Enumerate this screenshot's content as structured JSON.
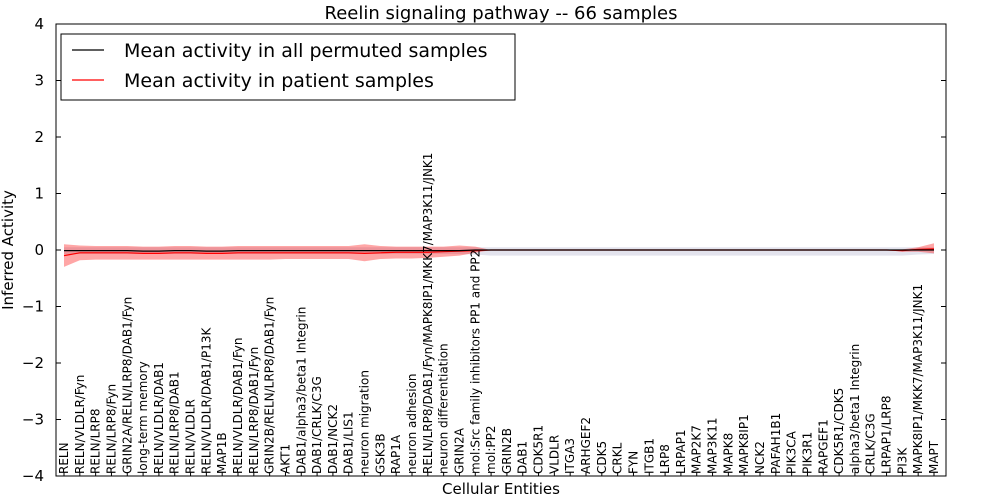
{
  "chart_data": {
    "type": "line",
    "title": "Reelin signaling pathway -- 66 samples",
    "xlabel": "Cellular Entities",
    "ylabel": "Inferred Activity",
    "ylim": [
      -4,
      4
    ],
    "yticks": [
      "−4",
      "−3",
      "−2",
      "−1",
      "0",
      "1",
      "2",
      "3",
      "4"
    ],
    "grid": false,
    "legend": {
      "position": "top-left",
      "entries": [
        {
          "label": "Mean activity in all permuted samples",
          "color": "#000000"
        },
        {
          "label": "Mean activity in patient samples",
          "color": "#ff0000"
        }
      ]
    },
    "colors": {
      "patient_band": "#ff0000",
      "permuted_band": "#c8c8dc",
      "permuted_line": "#000000",
      "patient_line": "#ff0000"
    },
    "categories": [
      "RELN",
      "RELN/VLDLR/Fyn",
      "RELN/LRP8",
      "RELN/LRP8/Fyn",
      "GRIN2A/RELN/LRP8/DAB1/Fyn",
      "long-term memory",
      "RELN/VLDLR/DAB1",
      "RELN/LRP8/DAB1",
      "RELN/VLDLR",
      "RELN/VLDLR/DAB1/P13K",
      "MAP1B",
      "RELN/VLDLR/DAB1/Fyn",
      "RELN/LRP8/DAB1/Fyn",
      "GRIN2B/RELN/LRP8/DAB1/Fyn",
      "AKT1",
      "DAB1/alpha3/beta1 Integrin",
      "DAB1/CRLK/C3G",
      "DAB1/NCK2",
      "DAB1/LIS1",
      "neuron migration",
      "GSK3B",
      "RAP1A",
      "neuron adhesion",
      "RELN/LRP8/DAB1/Fyn/MAPK8IP1/MKK7/MAP3K11/JNK1",
      "neuron differentiation",
      "GRIN2A",
      "mol:Src family inhibitors PP1 and PP2",
      "mol:PP2",
      "GRIN2B",
      "DAB1",
      "CDK5R1",
      "VLDLR",
      "ITGA3",
      "ARHGEF2",
      "CDK5",
      "CRKL",
      "FYN",
      "ITGB1",
      "LRP8",
      "LRPAP1",
      "MAP2K7",
      "MAP3K11",
      "MAPK8",
      "MAPK8IP1",
      "NCK2",
      "PAFAH1B1",
      "PIK3CA",
      "PIK3R1",
      "RAPGEF1",
      "CDK5R1/CDK5",
      "alpha3/beta1 Integrin",
      "CRLK/C3G",
      "LRPAP1/LRP8",
      "PI3K",
      "MAPK8IP1/MKK7/MAP3K11/JNK1",
      "MAPT"
    ],
    "series": [
      {
        "name": "Mean activity in all permuted samples",
        "values": [
          -0.01,
          -0.01,
          -0.01,
          -0.01,
          -0.01,
          -0.02,
          -0.02,
          -0.01,
          -0.01,
          -0.02,
          -0.02,
          -0.01,
          -0.01,
          -0.01,
          -0.01,
          -0.01,
          -0.01,
          -0.01,
          -0.01,
          -0.01,
          -0.01,
          -0.01,
          -0.01,
          -0.01,
          -0.01,
          -0.01,
          0,
          0,
          0,
          0,
          0,
          0,
          0,
          0,
          0,
          0,
          0,
          0,
          0,
          0,
          0,
          0,
          0,
          0,
          0,
          0,
          0,
          0,
          0,
          0,
          0,
          0,
          0,
          0,
          0,
          0
        ]
      },
      {
        "name": "Mean activity in patient samples",
        "values": [
          -0.1,
          -0.05,
          -0.05,
          -0.05,
          -0.05,
          -0.06,
          -0.06,
          -0.05,
          -0.05,
          -0.06,
          -0.06,
          -0.05,
          -0.05,
          -0.05,
          -0.05,
          -0.05,
          -0.05,
          -0.05,
          -0.05,
          -0.06,
          -0.05,
          -0.04,
          -0.04,
          -0.04,
          -0.03,
          -0.02,
          -0.01,
          0,
          0,
          0,
          0,
          0,
          0,
          0,
          0,
          0,
          0,
          0,
          0,
          0,
          0,
          0,
          0,
          0,
          0,
          0,
          0,
          0,
          0,
          0,
          0,
          0,
          0,
          -0.01,
          0.01,
          0.02
        ]
      }
    ],
    "bands": {
      "patient": {
        "upper": [
          0.1,
          0.08,
          0.07,
          0.07,
          0.07,
          0.06,
          0.06,
          0.07,
          0.07,
          0.06,
          0.06,
          0.07,
          0.07,
          0.07,
          0.07,
          0.07,
          0.07,
          0.07,
          0.07,
          0.1,
          0.07,
          0.06,
          0.06,
          0.06,
          0.06,
          0.08,
          0.06,
          0,
          0,
          0,
          0,
          0,
          0,
          0,
          0,
          0,
          0,
          0,
          0,
          0,
          0,
          0,
          0,
          0,
          0,
          0,
          0,
          0,
          0,
          0,
          0,
          0,
          0,
          0.01,
          0.05,
          0.12
        ],
        "lower": [
          -0.3,
          -0.18,
          -0.17,
          -0.17,
          -0.17,
          -0.17,
          -0.17,
          -0.17,
          -0.17,
          -0.17,
          -0.17,
          -0.17,
          -0.17,
          -0.17,
          -0.16,
          -0.16,
          -0.16,
          -0.16,
          -0.16,
          -0.2,
          -0.16,
          -0.15,
          -0.15,
          -0.14,
          -0.12,
          -0.1,
          -0.05,
          0,
          0,
          0,
          0,
          0,
          0,
          0,
          0,
          0,
          0,
          0,
          0,
          0,
          0,
          0,
          0,
          0,
          0,
          0,
          0,
          0,
          0,
          0,
          0,
          0,
          0,
          -0.03,
          -0.03,
          -0.06
        ]
      },
      "permuted": {
        "upper": [
          0.05,
          0.05,
          0.05,
          0.05,
          0.05,
          0.05,
          0.05,
          0.05,
          0.05,
          0.05,
          0.05,
          0.05,
          0.05,
          0.05,
          0.05,
          0.05,
          0.05,
          0.05,
          0.05,
          0.05,
          0.05,
          0.05,
          0.05,
          0.05,
          0.05,
          0.05,
          0.05,
          0.05,
          0.05,
          0.05,
          0.05,
          0.05,
          0.05,
          0.05,
          0.05,
          0.05,
          0.05,
          0.05,
          0.05,
          0.05,
          0.05,
          0.05,
          0.05,
          0.05,
          0.05,
          0.05,
          0.05,
          0.05,
          0.05,
          0.05,
          0.05,
          0.05,
          0.05,
          0.05,
          0.05,
          0.05
        ],
        "lower": [
          -0.07,
          -0.07,
          -0.07,
          -0.07,
          -0.07,
          -0.07,
          -0.07,
          -0.07,
          -0.07,
          -0.07,
          -0.07,
          -0.07,
          -0.07,
          -0.07,
          -0.07,
          -0.07,
          -0.07,
          -0.07,
          -0.07,
          -0.07,
          -0.07,
          -0.07,
          -0.07,
          -0.07,
          -0.07,
          -0.07,
          -0.08,
          -0.1,
          -0.1,
          -0.1,
          -0.1,
          -0.1,
          -0.1,
          -0.1,
          -0.1,
          -0.1,
          -0.1,
          -0.1,
          -0.1,
          -0.1,
          -0.1,
          -0.1,
          -0.1,
          -0.1,
          -0.1,
          -0.1,
          -0.1,
          -0.1,
          -0.1,
          -0.1,
          -0.1,
          -0.1,
          -0.1,
          -0.1,
          -0.08,
          -0.07
        ]
      }
    }
  }
}
